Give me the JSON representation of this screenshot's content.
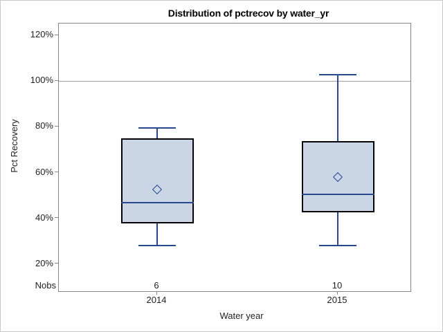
{
  "chart_data": {
    "type": "boxplot",
    "title": "Distribution of pctrecov by water_yr",
    "xlabel": "Water year",
    "ylabel": "Pct Recovery",
    "nobs_label": "Nobs",
    "categories": [
      "2014",
      "2015"
    ],
    "series": [
      {
        "name": "2014",
        "nobs": "6",
        "min": 27.8,
        "q1": 37.5,
        "median": 46.7,
        "q3": 74.8,
        "max": 79.8,
        "mean": 52.4
      },
      {
        "name": "2015",
        "nobs": "10",
        "min": 27.7,
        "q1": 42.5,
        "median": 50.2,
        "q3": 73.5,
        "max": 102.9,
        "mean": 57.7
      }
    ],
    "y_ticks": [
      {
        "value": 20,
        "label": "20%"
      },
      {
        "value": 40,
        "label": "40%"
      },
      {
        "value": 60,
        "label": "60%"
      },
      {
        "value": 80,
        "label": "80%"
      },
      {
        "value": 100,
        "label": "100%"
      },
      {
        "value": 120,
        "label": "120%"
      }
    ],
    "ylim": [
      8,
      125
    ],
    "reference_line": 100,
    "grid": false,
    "legend": false
  },
  "colors": {
    "box_fill": "#cad6e5",
    "box_border": "#000000",
    "whisker": "#26478d",
    "median": "#26478d",
    "mean_marker": "#26478d",
    "reference_line": "#9d9d9d",
    "frame": "#868686",
    "tick": "#868686",
    "text": "#222222",
    "title_text": "#000000"
  }
}
